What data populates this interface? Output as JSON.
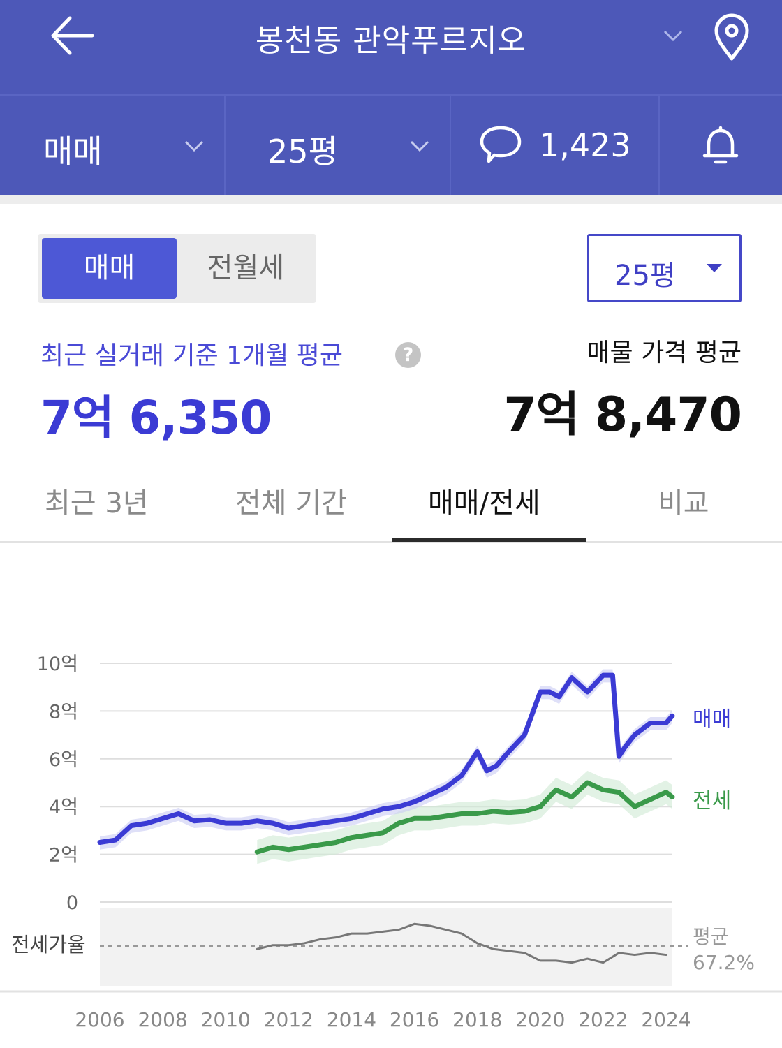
{
  "header": {
    "title": "봉천동 관악푸르지오"
  },
  "filters": {
    "trade_type": "매매",
    "size": "25평",
    "comment_count": "1,423"
  },
  "toggle": {
    "active": "매매",
    "inactive": "전월세"
  },
  "size_select": {
    "value": "25평"
  },
  "recent": {
    "label": "최근 실거래 기준 1개월 평균",
    "help": "?",
    "price": "7억 6,350"
  },
  "listing": {
    "label": "매물 가격 평균",
    "price": "7억 8,470"
  },
  "tabs": [
    "최근 3년",
    "전체 기간",
    "매매/전세",
    "비교"
  ],
  "colors": {
    "header": "#4d58b8",
    "sale": "#3b3bd4",
    "jeonse": "#3a9a4a",
    "ratio": "#777777"
  },
  "chart_data": {
    "type": "line",
    "x_ticks": [
      "2006",
      "2008",
      "2010",
      "2012",
      "2014",
      "2016",
      "2018",
      "2020",
      "2022",
      "2024"
    ],
    "y_ticks": [
      "10억",
      "8억",
      "6억",
      "4억",
      "2억",
      "0"
    ],
    "ylim": [
      0,
      10
    ],
    "ratio_label": "전세가율",
    "avg_label": "평균",
    "avg_value": "67.2%",
    "series": [
      {
        "name": "매매",
        "x": [
          2006.0,
          2006.5,
          2007.0,
          2007.5,
          2008.0,
          2008.5,
          2009.0,
          2009.5,
          2010.0,
          2010.5,
          2011.0,
          2011.5,
          2012.0,
          2012.5,
          2013.0,
          2013.5,
          2014.0,
          2014.5,
          2015.0,
          2015.5,
          2016.0,
          2016.5,
          2017.0,
          2017.5,
          2018.0,
          2018.3,
          2018.6,
          2019.0,
          2019.5,
          2020.0,
          2020.3,
          2020.6,
          2021.0,
          2021.5,
          2022.0,
          2022.3,
          2022.5,
          2022.7,
          2023.0,
          2023.5,
          2024.0,
          2024.2
        ],
        "values": [
          2.5,
          2.6,
          3.2,
          3.3,
          3.5,
          3.7,
          3.4,
          3.45,
          3.3,
          3.3,
          3.4,
          3.3,
          3.1,
          3.2,
          3.3,
          3.4,
          3.5,
          3.7,
          3.9,
          4.0,
          4.2,
          4.5,
          4.8,
          5.3,
          6.3,
          5.5,
          5.7,
          6.3,
          7.0,
          8.8,
          8.8,
          8.6,
          9.4,
          8.8,
          9.5,
          9.5,
          6.1,
          6.5,
          7.0,
          7.5,
          7.5,
          7.8
        ]
      },
      {
        "name": "전세",
        "x": [
          2011.0,
          2011.5,
          2012.0,
          2012.5,
          2013.0,
          2013.5,
          2014.0,
          2014.5,
          2015.0,
          2015.5,
          2016.0,
          2016.5,
          2017.0,
          2017.5,
          2018.0,
          2018.5,
          2019.0,
          2019.5,
          2020.0,
          2020.5,
          2021.0,
          2021.5,
          2022.0,
          2022.5,
          2023.0,
          2023.5,
          2024.0,
          2024.2
        ],
        "values": [
          2.1,
          2.3,
          2.2,
          2.3,
          2.4,
          2.5,
          2.7,
          2.8,
          2.9,
          3.3,
          3.5,
          3.5,
          3.6,
          3.7,
          3.7,
          3.8,
          3.75,
          3.8,
          4.0,
          4.7,
          4.4,
          5.0,
          4.7,
          4.6,
          4.0,
          4.3,
          4.6,
          4.4
        ]
      },
      {
        "name": "전세가율",
        "x": [
          2011.0,
          2011.5,
          2012.0,
          2012.5,
          2013.0,
          2013.5,
          2014.0,
          2014.5,
          2015.0,
          2015.5,
          2016.0,
          2016.5,
          2017.0,
          2017.5,
          2018.0,
          2018.5,
          2019.0,
          2019.5,
          2020.0,
          2020.5,
          2021.0,
          2021.5,
          2022.0,
          2022.5,
          2023.0,
          2023.5,
          2024.0
        ],
        "values": [
          64,
          66,
          66,
          67,
          69,
          70,
          72,
          72,
          73,
          74,
          77,
          76,
          74,
          72,
          67,
          64,
          63,
          62,
          58,
          58,
          57,
          59,
          57,
          62,
          61,
          62,
          61
        ]
      }
    ]
  }
}
